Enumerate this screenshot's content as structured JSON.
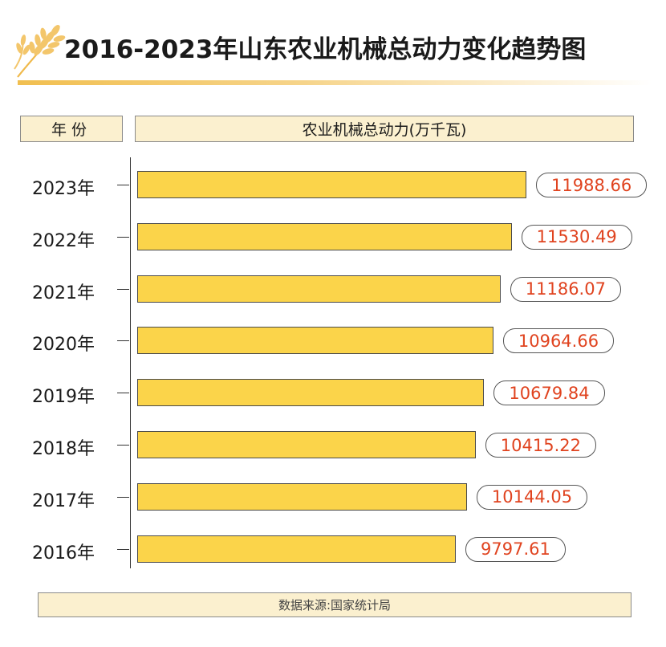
{
  "title": "2016-2023年山东农业机械总动力变化趋势图",
  "header": {
    "year_col": "年份",
    "value_col": "农业机械总动力(万千瓦)"
  },
  "source": "数据来源:国家统计局",
  "colors": {
    "bar": "#fbd44a",
    "value_text": "#e0431f",
    "header_bg": "#fbf0cf",
    "accent": "#f1bf50"
  },
  "icons": {
    "logo": "wheat-icon"
  },
  "chart_data": {
    "type": "bar",
    "orientation": "horizontal",
    "title": "2016-2023年山东农业机械总动力变化趋势图",
    "ylabel": "年份",
    "xlabel": "农业机械总动力(万千瓦)",
    "categories": [
      "2023年",
      "2022年",
      "2021年",
      "2020年",
      "2019年",
      "2018年",
      "2017年",
      "2016年"
    ],
    "values": [
      11988.66,
      11530.49,
      11186.07,
      10964.66,
      10679.84,
      10415.22,
      10144.05,
      9797.61
    ],
    "value_labels": [
      "11988.66",
      "11530.49",
      "11186.07",
      "10964.66",
      "10679.84",
      "10415.22",
      "10144.05",
      "9797.61"
    ],
    "grid": false,
    "legend": "none"
  }
}
